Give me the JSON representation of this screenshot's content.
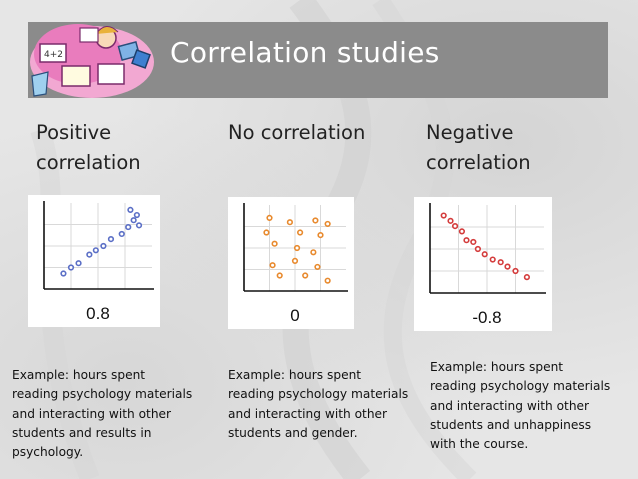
{
  "slide": {
    "title": "Correlation studies"
  },
  "columns": [
    {
      "heading_lines": [
        "Positive",
        "correlation"
      ],
      "coefficient": "0.8",
      "dot_color": "#5b6fc6",
      "points": [
        [
          0.18,
          0.18
        ],
        [
          0.25,
          0.25
        ],
        [
          0.32,
          0.3
        ],
        [
          0.42,
          0.4
        ],
        [
          0.48,
          0.45
        ],
        [
          0.55,
          0.5
        ],
        [
          0.62,
          0.58
        ],
        [
          0.72,
          0.64
        ],
        [
          0.78,
          0.72
        ],
        [
          0.83,
          0.8
        ],
        [
          0.86,
          0.86
        ],
        [
          0.8,
          0.92
        ],
        [
          0.88,
          0.74
        ]
      ],
      "example_lines": [
        "Example: hours spent",
        "reading psychology materials",
        "and interacting with other",
        "students and results in",
        "psychology."
      ]
    },
    {
      "heading_lines": [
        "No correlation"
      ],
      "coefficient": "0",
      "dot_color": "#e88a2e",
      "points": [
        [
          0.25,
          0.85
        ],
        [
          0.45,
          0.8
        ],
        [
          0.7,
          0.82
        ],
        [
          0.82,
          0.78
        ],
        [
          0.22,
          0.68
        ],
        [
          0.55,
          0.68
        ],
        [
          0.75,
          0.65
        ],
        [
          0.3,
          0.55
        ],
        [
          0.52,
          0.5
        ],
        [
          0.68,
          0.45
        ],
        [
          0.28,
          0.3
        ],
        [
          0.5,
          0.35
        ],
        [
          0.72,
          0.28
        ],
        [
          0.35,
          0.18
        ],
        [
          0.6,
          0.18
        ],
        [
          0.82,
          0.12
        ]
      ],
      "example_lines": [
        "Example: hours spent",
        "reading psychology materials",
        "and interacting with other",
        "students and gender."
      ]
    },
    {
      "heading_lines": [
        "Negative",
        "correlation"
      ],
      "coefficient": "-0.8",
      "dot_color": "#d43c3c",
      "points": [
        [
          0.12,
          0.88
        ],
        [
          0.18,
          0.82
        ],
        [
          0.22,
          0.76
        ],
        [
          0.28,
          0.7
        ],
        [
          0.32,
          0.6
        ],
        [
          0.38,
          0.58
        ],
        [
          0.42,
          0.5
        ],
        [
          0.48,
          0.44
        ],
        [
          0.55,
          0.38
        ],
        [
          0.62,
          0.35
        ],
        [
          0.68,
          0.3
        ],
        [
          0.75,
          0.25
        ],
        [
          0.85,
          0.18
        ]
      ],
      "example_lines": [
        "Example: hours spent",
        "reading psychology materials",
        "and interacting with other",
        "students and unhappiness",
        "with the course."
      ]
    }
  ]
}
